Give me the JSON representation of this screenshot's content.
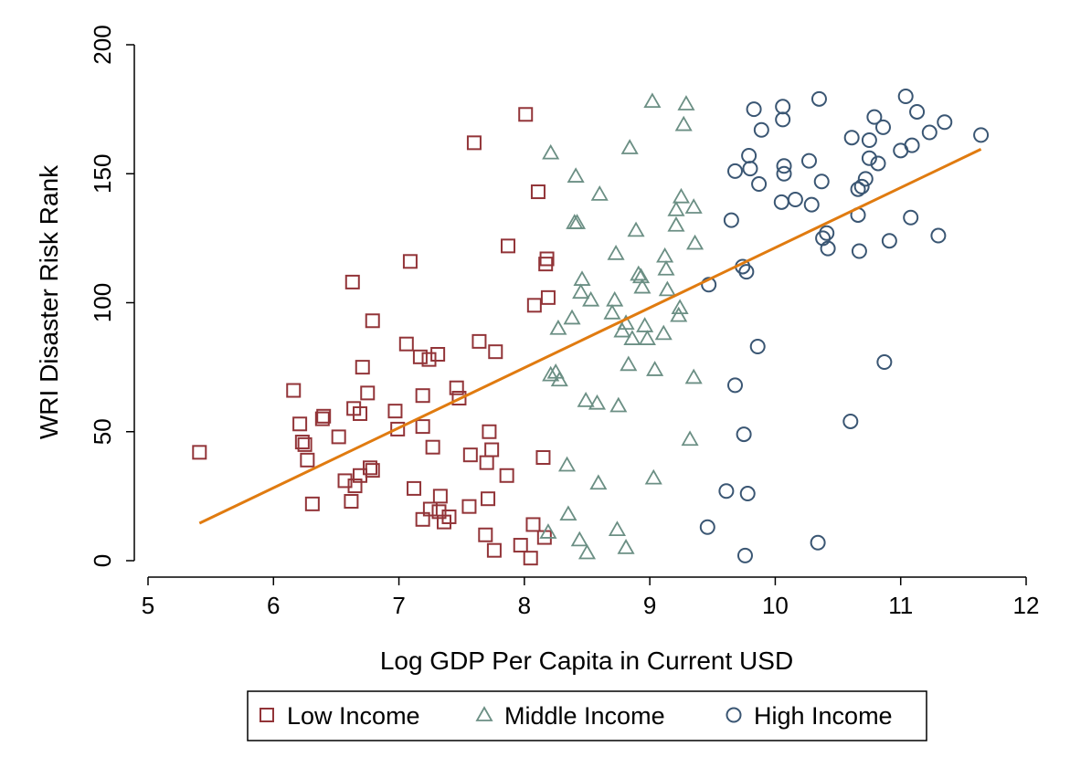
{
  "chart_data": {
    "type": "scatter",
    "xlabel": "Log GDP Per Capita in Current USD",
    "ylabel": "WRI Disaster Risk Rank",
    "xlim": [
      5,
      12
    ],
    "ylim": [
      0,
      200
    ],
    "xticks": [
      "5",
      "6",
      "7",
      "8",
      "9",
      "10",
      "11",
      "12"
    ],
    "yticks": [
      "0",
      "50",
      "100",
      "150",
      "200"
    ],
    "grid": false,
    "legend_position": "bottom",
    "colors": {
      "low": "#923438",
      "middle": "#6b8f84",
      "high": "#3a5673",
      "fit": "#e07b10"
    },
    "series": [
      {
        "name": "Low Income",
        "marker": "square",
        "points": [
          [
            5.41,
            42
          ],
          [
            6.16,
            66
          ],
          [
            6.21,
            53
          ],
          [
            6.23,
            46
          ],
          [
            6.25,
            45
          ],
          [
            6.27,
            39
          ],
          [
            6.31,
            22
          ],
          [
            6.39,
            55
          ],
          [
            6.4,
            56
          ],
          [
            6.52,
            48
          ],
          [
            6.57,
            31
          ],
          [
            6.62,
            23
          ],
          [
            6.63,
            108
          ],
          [
            6.64,
            59
          ],
          [
            6.65,
            29
          ],
          [
            6.69,
            57
          ],
          [
            6.71,
            75
          ],
          [
            6.69,
            33
          ],
          [
            6.75,
            65
          ],
          [
            6.77,
            36
          ],
          [
            6.79,
            35
          ],
          [
            6.79,
            93
          ],
          [
            6.97,
            58
          ],
          [
            6.99,
            51
          ],
          [
            7.06,
            84
          ],
          [
            7.09,
            116
          ],
          [
            7.12,
            28
          ],
          [
            7.17,
            79
          ],
          [
            7.19,
            64
          ],
          [
            7.19,
            52
          ],
          [
            7.19,
            16
          ],
          [
            7.24,
            78
          ],
          [
            7.25,
            20
          ],
          [
            7.27,
            44
          ],
          [
            7.31,
            80
          ],
          [
            7.32,
            19
          ],
          [
            7.33,
            25
          ],
          [
            7.36,
            15
          ],
          [
            7.4,
            17
          ],
          [
            7.46,
            67
          ],
          [
            7.48,
            63
          ],
          [
            7.56,
            21
          ],
          [
            7.57,
            41
          ],
          [
            7.6,
            162
          ],
          [
            7.64,
            85
          ],
          [
            7.69,
            10
          ],
          [
            7.7,
            38
          ],
          [
            7.71,
            24
          ],
          [
            7.72,
            50
          ],
          [
            7.74,
            43
          ],
          [
            7.76,
            4
          ],
          [
            7.77,
            81
          ],
          [
            7.86,
            33
          ],
          [
            7.87,
            122
          ],
          [
            7.97,
            6
          ],
          [
            8.01,
            173
          ],
          [
            8.05,
            1
          ],
          [
            8.07,
            14
          ],
          [
            8.08,
            99
          ],
          [
            8.11,
            143
          ],
          [
            8.15,
            40
          ],
          [
            8.16,
            9
          ],
          [
            8.17,
            115
          ],
          [
            8.18,
            117
          ],
          [
            8.19,
            102
          ]
        ]
      },
      {
        "name": "Middle Income",
        "marker": "triangle",
        "points": [
          [
            8.19,
            11
          ],
          [
            8.21,
            72
          ],
          [
            8.21,
            158
          ],
          [
            8.25,
            73
          ],
          [
            8.27,
            90
          ],
          [
            8.28,
            70
          ],
          [
            8.34,
            37
          ],
          [
            8.35,
            18
          ],
          [
            8.38,
            94
          ],
          [
            8.4,
            131
          ],
          [
            8.41,
            149
          ],
          [
            8.42,
            131
          ],
          [
            8.44,
            8
          ],
          [
            8.45,
            104
          ],
          [
            8.46,
            109
          ],
          [
            8.49,
            62
          ],
          [
            8.5,
            3
          ],
          [
            8.53,
            101
          ],
          [
            8.58,
            61
          ],
          [
            8.59,
            30
          ],
          [
            8.6,
            142
          ],
          [
            8.7,
            96
          ],
          [
            8.72,
            101
          ],
          [
            8.73,
            119
          ],
          [
            8.74,
            12
          ],
          [
            8.75,
            60
          ],
          [
            8.78,
            89
          ],
          [
            8.81,
            5
          ],
          [
            8.81,
            92
          ],
          [
            8.83,
            76
          ],
          [
            8.84,
            160
          ],
          [
            8.86,
            86
          ],
          [
            8.89,
            128
          ],
          [
            8.91,
            111
          ],
          [
            8.93,
            110
          ],
          [
            8.94,
            106
          ],
          [
            8.96,
            91
          ],
          [
            8.98,
            86
          ],
          [
            9.02,
            178
          ],
          [
            9.03,
            32
          ],
          [
            9.04,
            74
          ],
          [
            9.11,
            88
          ],
          [
            9.12,
            118
          ],
          [
            9.13,
            113
          ],
          [
            9.14,
            105
          ],
          [
            9.21,
            136
          ],
          [
            9.21,
            130
          ],
          [
            9.23,
            95
          ],
          [
            9.24,
            98
          ],
          [
            9.25,
            141
          ],
          [
            9.27,
            169
          ],
          [
            9.29,
            177
          ],
          [
            9.32,
            47
          ],
          [
            9.35,
            71
          ],
          [
            9.35,
            137
          ],
          [
            9.36,
            123
          ]
        ]
      },
      {
        "name": "High Income",
        "marker": "circle",
        "points": [
          [
            9.46,
            13
          ],
          [
            9.47,
            107
          ],
          [
            9.61,
            27
          ],
          [
            9.65,
            132
          ],
          [
            9.68,
            68
          ],
          [
            9.68,
            151
          ],
          [
            9.74,
            114
          ],
          [
            9.75,
            49
          ],
          [
            9.77,
            112
          ],
          [
            9.76,
            2
          ],
          [
            9.78,
            26
          ],
          [
            9.79,
            157
          ],
          [
            9.8,
            152
          ],
          [
            9.83,
            175
          ],
          [
            9.86,
            83
          ],
          [
            9.87,
            146
          ],
          [
            9.89,
            167
          ],
          [
            10.05,
            139
          ],
          [
            10.06,
            176
          ],
          [
            10.06,
            171
          ],
          [
            10.07,
            150
          ],
          [
            10.07,
            153
          ],
          [
            10.16,
            140
          ],
          [
            10.27,
            155
          ],
          [
            10.29,
            138
          ],
          [
            10.34,
            7
          ],
          [
            10.35,
            179
          ],
          [
            10.37,
            147
          ],
          [
            10.38,
            125
          ],
          [
            10.41,
            127
          ],
          [
            10.42,
            121
          ],
          [
            10.6,
            54
          ],
          [
            10.61,
            164
          ],
          [
            10.66,
            134
          ],
          [
            10.66,
            144
          ],
          [
            10.67,
            120
          ],
          [
            10.69,
            145
          ],
          [
            10.72,
            148
          ],
          [
            10.75,
            163
          ],
          [
            10.75,
            156
          ],
          [
            10.79,
            172
          ],
          [
            10.82,
            154
          ],
          [
            10.86,
            168
          ],
          [
            10.87,
            77
          ],
          [
            10.91,
            124
          ],
          [
            11.0,
            159
          ],
          [
            11.04,
            180
          ],
          [
            11.08,
            133
          ],
          [
            11.09,
            161
          ],
          [
            11.13,
            174
          ],
          [
            11.23,
            166
          ],
          [
            11.3,
            126
          ],
          [
            11.35,
            170
          ],
          [
            11.64,
            165
          ]
        ]
      }
    ],
    "fit_line": {
      "x": [
        5.41,
        11.64
      ],
      "y": [
        14.5,
        159.5
      ]
    }
  }
}
